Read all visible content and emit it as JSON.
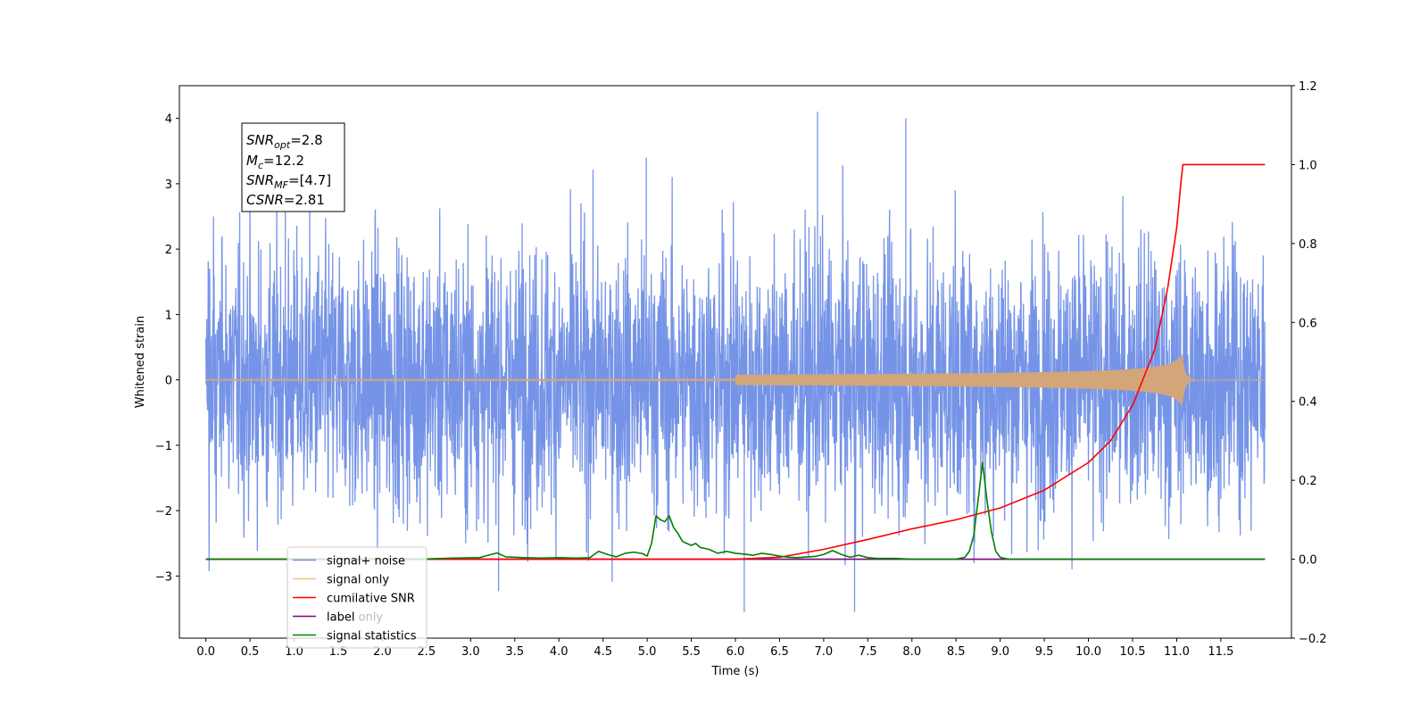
{
  "chart_data": {
    "type": "line",
    "xlabel": "Time (s)",
    "ylabel": "Whitened strain",
    "x_ticks": [
      "0.0",
      "0.5",
      "1.0",
      "1.5",
      "2.0",
      "2.5",
      "3.0",
      "3.5",
      "4.0",
      "4.5",
      "5.0",
      "5.5",
      "6.0",
      "6.5",
      "7.0",
      "7.5",
      "8.0",
      "8.5",
      "9.0",
      "9.5",
      "10.0",
      "10.5",
      "11.0",
      "11.5"
    ],
    "xlim": [
      -0.3,
      12.3
    ],
    "ylim_left": [
      -3.95,
      4.5
    ],
    "y_ticks_left": [
      "−3",
      "−2",
      "−1",
      "0",
      "1",
      "2",
      "3",
      "4"
    ],
    "ylim_right": [
      -0.2,
      1.2
    ],
    "y_ticks_right": [
      "−0.2",
      "0.0",
      "0.2",
      "0.4",
      "0.6",
      "0.8",
      "1.0",
      "1.2"
    ],
    "annotation": {
      "snr_opt": {
        "sym": "SNR",
        "sub": "opt",
        "val": "=2.8"
      },
      "mc": {
        "sym": "M",
        "sub": "c",
        "val": "=12.2"
      },
      "snr_mf": {
        "sym": "SNR",
        "sub": "MF",
        "val": "=[4.7]"
      },
      "csnr": {
        "sym": "CSNR",
        "sub": "",
        "val": "=2.81"
      }
    },
    "legend": {
      "placement": "lower-left",
      "items": [
        {
          "label": "signal+ noise",
          "color": "#6f8ee6"
        },
        {
          "label": "signal only",
          "color": "#f5c27a"
        },
        {
          "label": "cumilative SNR",
          "color": "#ff0000"
        },
        {
          "label": "label",
          "color": "#800080"
        },
        {
          "label": "signal statistics",
          "color": "#008000"
        }
      ]
    },
    "hidden_label_text": "label only",
    "series": [
      {
        "name": "signal+ noise",
        "axis": "left",
        "color": "#6f8ee6",
        "kind": "noise",
        "x_range": [
          0.0,
          12.0
        ],
        "envelope": [
          -3.55,
          4.1
        ],
        "notable_peaks": [
          [
            6.93,
            4.1
          ],
          [
            7.93,
            4.0
          ],
          [
            4.99,
            3.4
          ],
          [
            0.9,
            3.5
          ],
          [
            6.1,
            -3.55
          ],
          [
            7.35,
            -3.55
          ]
        ]
      },
      {
        "name": "signal only",
        "axis": "left",
        "color": "#d2a679",
        "kind": "chirp",
        "x_range": [
          0.0,
          11.2
        ],
        "merger": 11.06,
        "peak_amplitude": 0.4
      },
      {
        "name": "cumilative SNR",
        "axis": "right",
        "color": "#ff0000",
        "x": [
          0.0,
          6.0,
          6.5,
          7.0,
          7.5,
          8.0,
          8.5,
          9.0,
          9.5,
          10.0,
          10.25,
          10.5,
          10.75,
          10.9,
          11.0,
          11.05,
          11.07,
          11.5,
          12.0
        ],
        "values": [
          0.0,
          0.0,
          0.005,
          0.025,
          0.05,
          0.077,
          0.1,
          0.13,
          0.175,
          0.245,
          0.3,
          0.39,
          0.53,
          0.69,
          0.84,
          0.96,
          1.0,
          1.0,
          1.0
        ]
      },
      {
        "name": "label",
        "axis": "right",
        "color": "#800080",
        "x": [
          0.0,
          12.0
        ],
        "values": [
          0.0,
          0.0
        ]
      },
      {
        "name": "signal statistics",
        "axis": "right",
        "color": "#008000",
        "x": [
          0.0,
          2.4,
          2.8,
          3.1,
          3.2,
          3.3,
          3.4,
          3.6,
          3.8,
          4.0,
          4.2,
          4.35,
          4.45,
          4.55,
          4.65,
          4.75,
          4.85,
          4.95,
          5.0,
          5.05,
          5.1,
          5.15,
          5.2,
          5.25,
          5.3,
          5.35,
          5.4,
          5.45,
          5.5,
          5.55,
          5.6,
          5.7,
          5.8,
          5.9,
          6.0,
          6.1,
          6.2,
          6.3,
          6.4,
          6.5,
          6.6,
          6.7,
          6.9,
          7.0,
          7.1,
          7.2,
          7.3,
          7.4,
          7.5,
          7.6,
          7.8,
          8.0,
          8.5,
          8.6,
          8.65,
          8.7,
          8.75,
          8.8,
          8.85,
          8.9,
          8.95,
          9.0,
          9.05,
          9.1,
          9.2,
          10.0,
          11.0,
          12.0
        ],
        "values": [
          0.0,
          0.0,
          0.003,
          0.004,
          0.01,
          0.016,
          0.006,
          0.004,
          0.003,
          0.004,
          0.003,
          0.004,
          0.02,
          0.012,
          0.006,
          0.015,
          0.018,
          0.014,
          0.008,
          0.04,
          0.11,
          0.1,
          0.095,
          0.11,
          0.08,
          0.065,
          0.045,
          0.04,
          0.035,
          0.04,
          0.03,
          0.025,
          0.015,
          0.02,
          0.015,
          0.013,
          0.01,
          0.015,
          0.012,
          0.008,
          0.005,
          0.004,
          0.007,
          0.012,
          0.022,
          0.012,
          0.005,
          0.01,
          0.004,
          0.002,
          0.002,
          0.0,
          0.0,
          0.005,
          0.02,
          0.06,
          0.15,
          0.245,
          0.15,
          0.07,
          0.02,
          0.005,
          0.002,
          0.0,
          0.0,
          0.0,
          0.0,
          0.0
        ]
      }
    ]
  }
}
